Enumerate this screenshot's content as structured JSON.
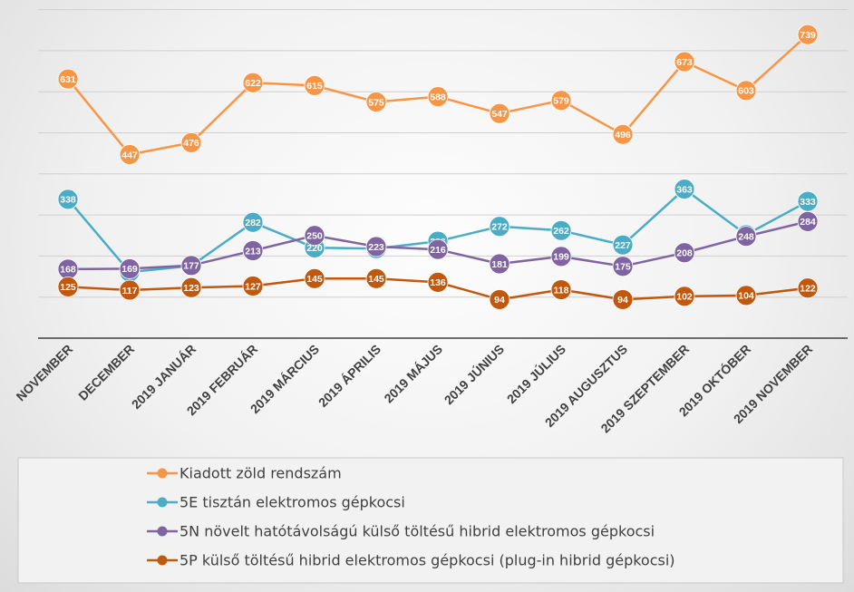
{
  "chart_data": {
    "type": "line",
    "title": "",
    "xlabel": "",
    "ylabel": "",
    "ylim": [
      0,
      800
    ],
    "y_ticks": [
      100,
      200,
      300,
      400,
      500,
      600,
      700,
      800
    ],
    "grid": true,
    "legend_position": "bottom",
    "categories": [
      "NOVEMBER",
      "DECEMBER",
      "2019 JANUÁR",
      "2019 FEBRUÁR",
      "2019 MÁRCIUS",
      "2019 ÁPRILIS",
      "2019 MÁJUS",
      "2019 JÚNIUS",
      "2019 JÚLIUS",
      "2019 AUGUSZTUS",
      "2019 SZEPTEMBER",
      "2019 OKTÓBER",
      "2019 NOVEMBER"
    ],
    "series": [
      {
        "name": "Kiadott zöld rendszám",
        "color": "#F79646",
        "values": [
          631,
          447,
          476,
          622,
          615,
          575,
          588,
          547,
          579,
          496,
          673,
          603,
          739
        ]
      },
      {
        "name": "5E tisztán elektromos gépkocsi",
        "color": "#4BACC6",
        "values": [
          338,
          161,
          176,
          282,
          220,
          218,
          236,
          272,
          262,
          227,
          363,
          252,
          333
        ]
      },
      {
        "name": "5N növelt hatótávolságú külső töltésű hibrid elektromos gépkocsi",
        "color": "#8064A2",
        "values": [
          168,
          169,
          177,
          213,
          250,
          223,
          216,
          181,
          199,
          175,
          208,
          248,
          284
        ]
      },
      {
        "name": "5P külső töltésű hibrid elektromos gépkocsi (plug-in hibrid gépkocsi)",
        "color": "#C0580E",
        "values": [
          125,
          117,
          123,
          127,
          145,
          145,
          136,
          94,
          118,
          94,
          102,
          104,
          122
        ]
      }
    ]
  }
}
